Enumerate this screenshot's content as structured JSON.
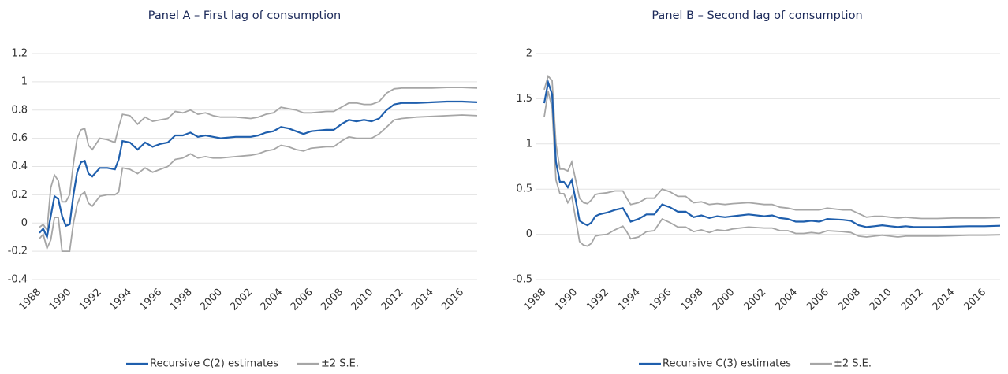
{
  "chart_data": [
    {
      "type": "line",
      "title": "Panel A – First lag of consumption",
      "x": [
        1988,
        1988.25,
        1988.5,
        1988.75,
        1989,
        1989.25,
        1989.5,
        1989.75,
        1990,
        1990.25,
        1990.5,
        1990.75,
        1991,
        1991.25,
        1991.5,
        1992,
        1992.5,
        1993,
        1993.25,
        1993.5,
        1994,
        1994.5,
        1995,
        1995.5,
        1996,
        1996.5,
        1997,
        1997.5,
        1998,
        1998.5,
        1999,
        1999.5,
        2000,
        2001,
        2002,
        2002.5,
        2003,
        2003.5,
        2004,
        2004.5,
        2005,
        2005.5,
        2006,
        2007,
        2007.5,
        2008,
        2008.5,
        2009,
        2009.5,
        2010,
        2010.5,
        2011,
        2011.5,
        2012,
        2013,
        2014,
        2015,
        2016,
        2017
      ],
      "series": [
        {
          "name": "±2 S.E.",
          "color": "#a6a6a6",
          "values": [
            -0.03,
            -0.01,
            -0.05,
            0.25,
            0.34,
            0.3,
            0.15,
            0.15,
            0.2,
            0.42,
            0.6,
            0.66,
            0.67,
            0.55,
            0.52,
            0.6,
            0.59,
            0.57,
            0.68,
            0.77,
            0.76,
            0.7,
            0.75,
            0.72,
            0.73,
            0.74,
            0.79,
            0.78,
            0.8,
            0.77,
            0.78,
            0.76,
            0.75,
            0.75,
            0.74,
            0.75,
            0.77,
            0.78,
            0.82,
            0.81,
            0.8,
            0.78,
            0.78,
            0.79,
            0.79,
            0.82,
            0.85,
            0.85,
            0.84,
            0.84,
            0.86,
            0.92,
            0.95,
            0.955,
            0.955,
            0.955,
            0.96,
            0.96,
            0.955
          ]
        },
        {
          "color": "#a6a6a6",
          "values": [
            -0.11,
            -0.08,
            -0.18,
            -0.12,
            0.04,
            0.04,
            -0.2,
            -0.2,
            -0.2,
            0.0,
            0.13,
            0.2,
            0.22,
            0.14,
            0.12,
            0.19,
            0.2,
            0.2,
            0.22,
            0.39,
            0.38,
            0.35,
            0.39,
            0.36,
            0.38,
            0.4,
            0.45,
            0.46,
            0.49,
            0.46,
            0.47,
            0.46,
            0.46,
            0.47,
            0.48,
            0.49,
            0.51,
            0.52,
            0.55,
            0.54,
            0.52,
            0.51,
            0.53,
            0.54,
            0.54,
            0.58,
            0.61,
            0.6,
            0.6,
            0.6,
            0.63,
            0.68,
            0.73,
            0.74,
            0.75,
            0.755,
            0.76,
            0.765,
            0.76
          ]
        },
        {
          "name": "Recursive C(2) estimates",
          "color": "#1f5fad",
          "values": [
            -0.07,
            -0.04,
            -0.1,
            0.05,
            0.19,
            0.17,
            0.05,
            -0.02,
            -0.01,
            0.2,
            0.36,
            0.43,
            0.44,
            0.35,
            0.33,
            0.39,
            0.39,
            0.38,
            0.45,
            0.58,
            0.57,
            0.52,
            0.57,
            0.54,
            0.56,
            0.57,
            0.62,
            0.62,
            0.64,
            0.61,
            0.62,
            0.61,
            0.6,
            0.61,
            0.61,
            0.62,
            0.64,
            0.65,
            0.68,
            0.67,
            0.65,
            0.63,
            0.65,
            0.66,
            0.66,
            0.7,
            0.73,
            0.72,
            0.73,
            0.72,
            0.74,
            0.8,
            0.84,
            0.85,
            0.85,
            0.855,
            0.86,
            0.86,
            0.855
          ]
        }
      ],
      "legend_order": [
        2,
        0
      ],
      "xlim": [
        1988,
        2017
      ],
      "xticks": [
        1988,
        1990,
        1992,
        1994,
        1996,
        1998,
        2000,
        2002,
        2004,
        2006,
        2008,
        2010,
        2012,
        2014,
        2016
      ],
      "ylim": [
        -0.4,
        1.2
      ],
      "yticks": [
        -0.4,
        -0.2,
        0,
        0.2,
        0.4,
        0.6,
        0.8,
        1,
        1.2
      ],
      "grid": true,
      "legend": "bottom"
    },
    {
      "type": "line",
      "title": "Panel B – Second lag of consumption",
      "x": [
        1988,
        1988.25,
        1988.5,
        1988.75,
        1989,
        1989.25,
        1989.5,
        1989.75,
        1990,
        1990.25,
        1990.5,
        1990.75,
        1991,
        1991.25,
        1991.5,
        1992,
        1992.5,
        1993,
        1993.25,
        1993.5,
        1994,
        1994.5,
        1995,
        1995.5,
        1996,
        1996.5,
        1997,
        1997.5,
        1998,
        1998.5,
        1999,
        1999.5,
        2000,
        2001,
        2002,
        2002.5,
        2003,
        2003.5,
        2004,
        2004.5,
        2005,
        2005.5,
        2006,
        2007,
        2007.5,
        2008,
        2008.5,
        2009,
        2009.5,
        2010,
        2010.5,
        2011,
        2011.5,
        2012,
        2013,
        2014,
        2015,
        2016,
        2017
      ],
      "series": [
        {
          "name": "±2 S.E.",
          "color": "#a6a6a6",
          "values": [
            1.6,
            1.75,
            1.7,
            1.0,
            0.72,
            0.72,
            0.7,
            0.8,
            0.6,
            0.4,
            0.35,
            0.34,
            0.38,
            0.44,
            0.45,
            0.46,
            0.48,
            0.48,
            0.4,
            0.33,
            0.35,
            0.4,
            0.4,
            0.5,
            0.47,
            0.42,
            0.42,
            0.35,
            0.36,
            0.33,
            0.34,
            0.33,
            0.34,
            0.35,
            0.33,
            0.33,
            0.3,
            0.29,
            0.27,
            0.27,
            0.27,
            0.27,
            0.29,
            0.27,
            0.27,
            0.23,
            0.19,
            0.2,
            0.2,
            0.19,
            0.18,
            0.19,
            0.18,
            0.175,
            0.175,
            0.18,
            0.18,
            0.18,
            0.185
          ]
        },
        {
          "color": "#a6a6a6",
          "values": [
            1.3,
            1.58,
            1.4,
            0.6,
            0.45,
            0.45,
            0.35,
            0.42,
            0.17,
            -0.08,
            -0.12,
            -0.13,
            -0.1,
            -0.02,
            -0.01,
            0.0,
            0.05,
            0.09,
            0.03,
            -0.05,
            -0.03,
            0.03,
            0.04,
            0.17,
            0.13,
            0.08,
            0.08,
            0.03,
            0.05,
            0.02,
            0.05,
            0.04,
            0.06,
            0.08,
            0.07,
            0.07,
            0.04,
            0.04,
            0.01,
            0.01,
            0.02,
            0.01,
            0.04,
            0.03,
            0.02,
            -0.02,
            -0.03,
            -0.02,
            -0.01,
            -0.02,
            -0.03,
            -0.02,
            -0.02,
            -0.02,
            -0.02,
            -0.015,
            -0.01,
            -0.01,
            -0.005
          ]
        },
        {
          "name": "Recursive C(3) estimates",
          "color": "#1f5fad",
          "values": [
            1.45,
            1.68,
            1.55,
            0.8,
            0.58,
            0.58,
            0.52,
            0.6,
            0.38,
            0.15,
            0.12,
            0.1,
            0.13,
            0.2,
            0.22,
            0.24,
            0.27,
            0.29,
            0.22,
            0.14,
            0.17,
            0.22,
            0.22,
            0.33,
            0.3,
            0.25,
            0.25,
            0.19,
            0.21,
            0.18,
            0.2,
            0.19,
            0.2,
            0.22,
            0.2,
            0.21,
            0.18,
            0.17,
            0.14,
            0.14,
            0.15,
            0.14,
            0.17,
            0.16,
            0.15,
            0.1,
            0.08,
            0.09,
            0.1,
            0.09,
            0.08,
            0.09,
            0.08,
            0.08,
            0.08,
            0.085,
            0.09,
            0.09,
            0.095
          ]
        }
      ],
      "legend_order": [
        2,
        0
      ],
      "xlim": [
        1988,
        2017
      ],
      "xticks": [
        1988,
        1990,
        1992,
        1994,
        1996,
        1998,
        2000,
        2002,
        2004,
        2006,
        2008,
        2010,
        2012,
        2014,
        2016
      ],
      "ylim": [
        -0.5,
        2
      ],
      "yticks": [
        -0.5,
        0,
        0.5,
        1,
        1.5,
        2
      ],
      "grid": true,
      "legend": "bottom"
    }
  ]
}
